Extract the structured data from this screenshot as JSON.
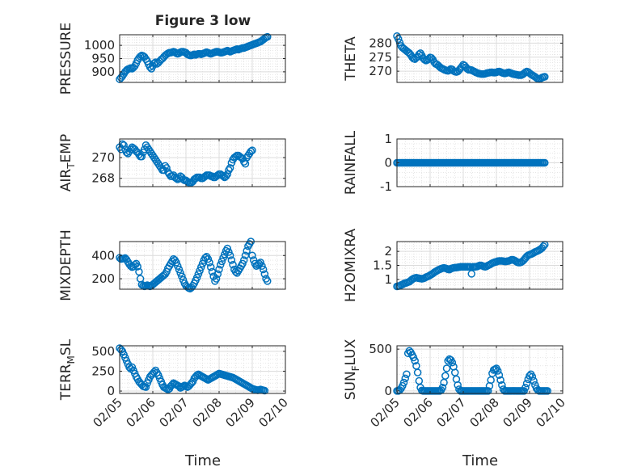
{
  "figure": {
    "title": "Figure 3 low",
    "xlabel": "Time",
    "marker_color": "#0072BD",
    "date_ticks": [
      "02/05",
      "02/06",
      "02/07",
      "02/08",
      "02/09",
      "02/10"
    ]
  },
  "chart_data": [
    {
      "type": "scatter",
      "name": "pressure",
      "ylabel": "PRESSURE",
      "ylabel_sub": "",
      "ylim": [
        860,
        1040
      ],
      "yticks": [
        900,
        950,
        1000
      ],
      "ytick_labels": [
        "900",
        "950",
        "1000"
      ],
      "grid": true,
      "x_start": "02/05 00:00",
      "x_step_hours": 1,
      "values": [
        872,
        878,
        884,
        892,
        900,
        906,
        910,
        912,
        914,
        912,
        916,
        922,
        932,
        944,
        952,
        958,
        962,
        960,
        956,
        948,
        940,
        928,
        918,
        912,
        922,
        932,
        936,
        930,
        934,
        940,
        946,
        950,
        956,
        962,
        966,
        970,
        972,
        972,
        974,
        976,
        974,
        970,
        968,
        970,
        974,
        976,
        976,
        974,
        972,
        966,
        964,
        962,
        962,
        964,
        966,
        964,
        966,
        968,
        968,
        966,
        968,
        970,
        972,
        974,
        972,
        970,
        968,
        970,
        972,
        974,
        976,
        976,
        974,
        972,
        972,
        974,
        976,
        978,
        980,
        978,
        976,
        978,
        980,
        982,
        984,
        986,
        984,
        986,
        988,
        990,
        990,
        992,
        994,
        996,
        998,
        1000,
        1002,
        1004,
        1006,
        1008,
        1010,
        1012,
        1014,
        1018,
        1022,
        1026,
        1030,
        1032
      ]
    },
    {
      "type": "scatter",
      "name": "theta",
      "ylabel": "THETA",
      "ylabel_sub": "",
      "ylim": [
        266,
        283
      ],
      "yticks": [
        270,
        275,
        280
      ],
      "ytick_labels": [
        "270",
        "275",
        "280"
      ],
      "grid": true,
      "x_start": "02/05 00:00",
      "x_step_hours": 1,
      "values": [
        282.5,
        281.5,
        280.2,
        279.0,
        278.4,
        278.0,
        277.6,
        277.2,
        276.8,
        276.4,
        275.8,
        275.0,
        274.5,
        274.3,
        274.8,
        275.2,
        276.0,
        276.4,
        275.6,
        274.6,
        274.1,
        273.8,
        274.0,
        274.4,
        274.9,
        274.7,
        274.1,
        273.2,
        272.6,
        272.4,
        272.0,
        271.5,
        271.1,
        270.9,
        270.6,
        270.4,
        270.2,
        270.1,
        270.4,
        270.8,
        270.6,
        270.1,
        269.8,
        269.7,
        269.9,
        270.4,
        271.0,
        271.6,
        272.3,
        272.0,
        271.4,
        270.8,
        270.5,
        270.5,
        270.4,
        270.1,
        269.9,
        269.6,
        269.4,
        269.2,
        269.1,
        269.0,
        269.0,
        269.0,
        269.1,
        269.3,
        269.4,
        269.5,
        269.6,
        269.6,
        269.5,
        269.5,
        269.6,
        269.8,
        269.9,
        269.7,
        269.5,
        269.3,
        269.2,
        269.3,
        269.5,
        269.6,
        269.4,
        269.2,
        269.0,
        268.9,
        268.8,
        268.7,
        268.6,
        268.6,
        268.6,
        268.8,
        269.2,
        269.6,
        269.9,
        269.7,
        269.3,
        268.9,
        268.6,
        268.3,
        268.0,
        267.6,
        267.3,
        267.2,
        267.4,
        267.7,
        267.9,
        268.0
      ]
    },
    {
      "type": "scatter",
      "name": "air_temp",
      "ylabel": "AIR",
      "ylabel_sub": "T",
      "ylabel_rest": "EMP",
      "ylim": [
        267.2,
        271.8
      ],
      "yticks": [
        268,
        270
      ],
      "ytick_labels": [
        "268",
        "270"
      ],
      "grid": true,
      "x_start": "02/05 00:00",
      "x_step_hours": 1,
      "values": [
        271.0,
        270.8,
        271.3,
        271.2,
        270.8,
        270.5,
        270.4,
        270.6,
        270.8,
        271.0,
        270.9,
        270.8,
        270.6,
        270.5,
        270.3,
        270.1,
        270.1,
        270.5,
        270.8,
        271.2,
        271.0,
        270.8,
        270.6,
        270.4,
        270.2,
        270.0,
        269.8,
        269.6,
        269.4,
        269.2,
        269.0,
        268.8,
        268.8,
        269.2,
        269.0,
        268.6,
        268.4,
        268.2,
        268.2,
        268.3,
        268.1,
        268.0,
        267.9,
        268.0,
        268.2,
        268.1,
        267.9,
        267.8,
        267.8,
        267.7,
        267.6,
        267.6,
        267.6,
        267.7,
        267.9,
        268.0,
        268.1,
        268.1,
        268.1,
        268.0,
        268.0,
        268.1,
        268.2,
        268.3,
        268.3,
        268.3,
        268.2,
        268.2,
        268.1,
        268.1,
        268.2,
        268.3,
        268.4,
        268.4,
        268.3,
        268.2,
        268.1,
        268.2,
        268.4,
        268.8,
        269.0,
        269.5,
        269.8,
        270.0,
        270.1,
        270.2,
        270.2,
        270.1,
        270.0,
        269.9,
        269.6,
        269.4,
        270.0,
        270.2,
        270.4,
        270.6,
        270.7
      ]
    },
    {
      "type": "scatter",
      "name": "rainfall",
      "ylabel": "RAINFALL",
      "ylabel_sub": "",
      "ylim": [
        -1,
        1
      ],
      "yticks": [
        -1,
        0,
        1
      ],
      "ytick_labels": [
        "-1",
        "0",
        "1"
      ],
      "grid": true,
      "x_start": "02/05 00:00",
      "x_step_hours": 1,
      "n_points": 108,
      "constant_value": 0
    },
    {
      "type": "scatter",
      "name": "mixdepth",
      "ylabel": "MIXDEPTH",
      "ylabel_sub": "",
      "ylim": [
        110,
        520
      ],
      "yticks": [
        200,
        400
      ],
      "ytick_labels": [
        "200",
        "400"
      ],
      "grid": true,
      "x_start": "02/05 00:00",
      "x_step_hours": 1,
      "values": [
        380,
        370,
        372,
        374,
        378,
        365,
        345,
        325,
        310,
        300,
        305,
        320,
        330,
        305,
        260,
        200,
        150,
        140,
        135,
        140,
        145,
        140,
        135,
        140,
        150,
        160,
        170,
        180,
        190,
        200,
        210,
        220,
        230,
        240,
        260,
        290,
        310,
        330,
        350,
        370,
        360,
        340,
        310,
        280,
        250,
        220,
        190,
        160,
        140,
        130,
        120,
        115,
        125,
        140,
        160,
        185,
        210,
        240,
        270,
        300,
        330,
        360,
        380,
        390,
        370,
        340,
        300,
        260,
        220,
        180,
        200,
        240,
        280,
        320,
        350,
        380,
        410,
        440,
        460,
        430,
        400,
        360,
        320,
        280,
        260,
        250,
        270,
        290,
        310,
        330,
        360,
        400,
        440,
        480,
        500,
        520,
        400,
        360,
        330,
        310,
        320,
        330,
        340,
        310,
        280,
        240,
        200,
        180
      ]
    },
    {
      "type": "scatter",
      "name": "h2omixra",
      "ylabel": "H2OMIXRA",
      "ylabel_sub": "",
      "ylim": [
        0.65,
        2.35
      ],
      "yticks": [
        1,
        1.5,
        2
      ],
      "ytick_labels": [
        "1",
        "1.5",
        "2"
      ],
      "grid": true,
      "x_start": "02/05 00:00",
      "x_step_hours": 1,
      "values": [
        0.75,
        0.76,
        0.77,
        0.8,
        0.82,
        0.85,
        0.87,
        0.88,
        0.9,
        0.92,
        0.96,
        1.0,
        1.03,
        1.05,
        1.06,
        1.05,
        1.04,
        1.03,
        1.02,
        1.03,
        1.05,
        1.08,
        1.1,
        1.12,
        1.15,
        1.18,
        1.21,
        1.25,
        1.28,
        1.31,
        1.34,
        1.36,
        1.38,
        1.4,
        1.41,
        1.4,
        1.38,
        1.36,
        1.35,
        1.38,
        1.4,
        1.41,
        1.42,
        1.42,
        1.43,
        1.44,
        1.45,
        1.45,
        1.45,
        1.45,
        1.45,
        1.45,
        1.45,
        1.45,
        1.2,
        1.45,
        1.45,
        1.45,
        1.46,
        1.48,
        1.5,
        1.5,
        1.48,
        1.46,
        1.45,
        1.47,
        1.5,
        1.52,
        1.55,
        1.58,
        1.6,
        1.62,
        1.63,
        1.65,
        1.66,
        1.66,
        1.66,
        1.65,
        1.64,
        1.64,
        1.65,
        1.66,
        1.68,
        1.7,
        1.7,
        1.68,
        1.65,
        1.62,
        1.6,
        1.6,
        1.62,
        1.65,
        1.7,
        1.76,
        1.82,
        1.86,
        1.88,
        1.9,
        1.92,
        1.95,
        1.98,
        2.0,
        2.02,
        2.05,
        2.08,
        2.12,
        2.18,
        2.24
      ]
    },
    {
      "type": "scatter",
      "name": "terr_msl",
      "ylabel": "TERR",
      "ylabel_sub": "M",
      "ylabel_rest": "SL",
      "ylim": [
        -30,
        570
      ],
      "yticks": [
        0,
        250,
        500
      ],
      "ytick_labels": [
        "0",
        "250",
        "500"
      ],
      "grid": true,
      "x_start": "02/05 00:00",
      "x_step_hours": 1,
      "values": [
        540,
        520,
        500,
        460,
        420,
        380,
        340,
        300,
        280,
        300,
        260,
        220,
        180,
        150,
        120,
        100,
        80,
        60,
        55,
        50,
        100,
        140,
        180,
        200,
        220,
        240,
        260,
        230,
        200,
        160,
        120,
        80,
        50,
        40,
        30,
        20,
        30,
        60,
        80,
        100,
        90,
        80,
        70,
        60,
        40,
        50,
        60,
        70,
        60,
        50,
        60,
        80,
        100,
        120,
        160,
        180,
        200,
        210,
        200,
        190,
        180,
        170,
        160,
        150,
        140,
        150,
        160,
        170,
        180,
        190,
        200,
        210,
        220,
        215,
        210,
        205,
        200,
        195,
        190,
        185,
        180,
        175,
        170,
        160,
        150,
        140,
        130,
        120,
        110,
        100,
        90,
        80,
        70,
        60,
        50,
        40,
        30,
        25,
        20,
        15,
        10,
        15,
        20,
        15,
        10,
        5
      ]
    },
    {
      "type": "scatter",
      "name": "sun_flux",
      "ylabel": "SUN",
      "ylabel_sub": "F",
      "ylabel_rest": "LUX",
      "ylim": [
        -30,
        540
      ],
      "yticks": [
        0,
        500
      ],
      "ytick_labels": [
        "0",
        "500"
      ],
      "grid": true,
      "x_start": "02/05 00:00",
      "x_step_hours": 1,
      "values": [
        0,
        0,
        10,
        30,
        60,
        100,
        150,
        200,
        450,
        480,
        460,
        430,
        400,
        360,
        300,
        220,
        120,
        40,
        5,
        0,
        0,
        0,
        0,
        0,
        0,
        0,
        0,
        0,
        0,
        0,
        0,
        0,
        10,
        40,
        100,
        180,
        270,
        360,
        380,
        370,
        340,
        290,
        220,
        140,
        70,
        20,
        0,
        0,
        0,
        0,
        0,
        0,
        0,
        0,
        0,
        0,
        0,
        0,
        0,
        0,
        0,
        0,
        0,
        0,
        0,
        0,
        0,
        60,
        130,
        210,
        250,
        260,
        270,
        240,
        190,
        130,
        70,
        20,
        0,
        0,
        0,
        0,
        0,
        0,
        0,
        0,
        0,
        0,
        0,
        0,
        0,
        0,
        0,
        40,
        90,
        140,
        180,
        200,
        170,
        120,
        70,
        30,
        10,
        0,
        0,
        0,
        0,
        0,
        0,
        0
      ]
    }
  ]
}
